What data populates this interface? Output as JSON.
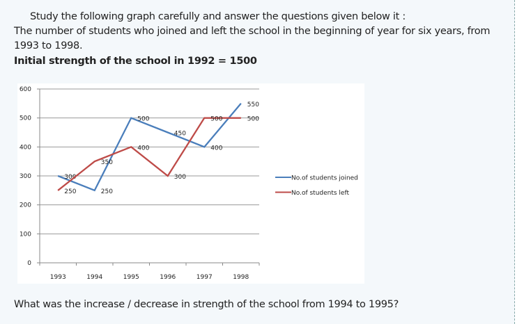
{
  "question": {
    "intro": "Study the following graph carefully and answer the questions given below it :",
    "description_line1": "The number of students who joined and left the school in the beginning of year for six years, from",
    "description_line2": "1993 to 1998.",
    "initial_strength": "Initial strength of the school in 1992 = 1500",
    "prompt": "What was the increase / decrease in strength of the school from 1994 to 1995?"
  },
  "chart_data": {
    "type": "line",
    "title": "",
    "xlabel": "",
    "ylabel": "",
    "categories": [
      "1993",
      "1994",
      "1995",
      "1996",
      "1997",
      "1998"
    ],
    "ylim": [
      0,
      600
    ],
    "yticks": [
      0,
      100,
      200,
      300,
      400,
      500,
      600
    ],
    "grid": true,
    "legend_position": "right",
    "series": [
      {
        "name": "No.of students joined",
        "color": "#4a7ebb",
        "values": [
          300,
          250,
          500,
          450,
          400,
          550
        ]
      },
      {
        "name": "No.of students left",
        "color": "#be4b48",
        "values": [
          250,
          350,
          400,
          300,
          500,
          500
        ]
      }
    ]
  }
}
